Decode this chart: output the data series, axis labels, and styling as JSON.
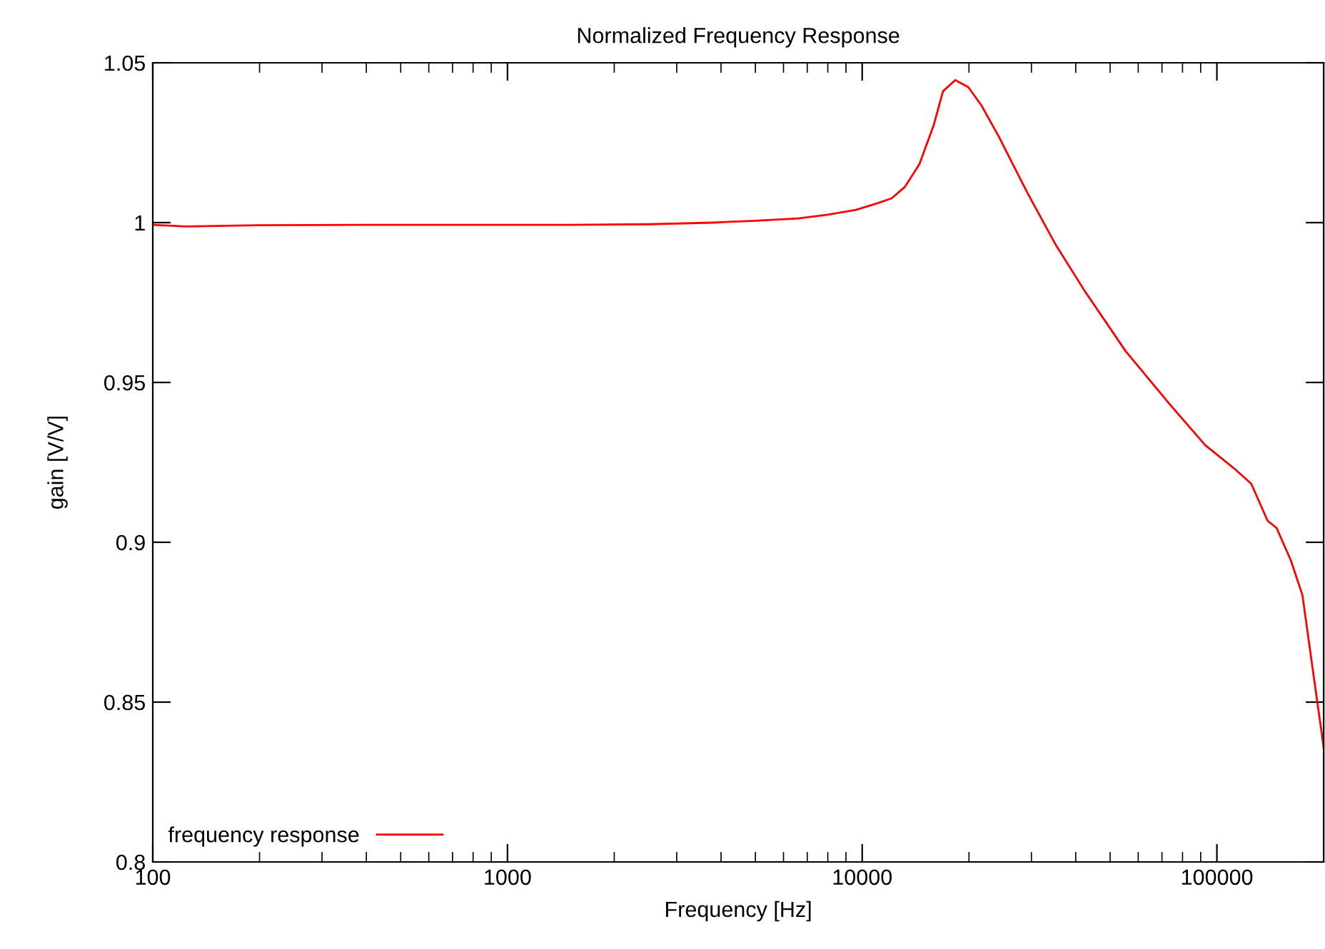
{
  "chart_data": {
    "type": "line",
    "title": "Normalized Frequency Response",
    "xlabel": "Frequency [Hz]",
    "ylabel": "gain [V/V]",
    "log": "x",
    "xlim": [
      100,
      200000
    ],
    "xticks": [
      100,
      1000,
      10000,
      100000
    ],
    "ylim": [
      0.8,
      1.05
    ],
    "yticks": [
      0.8,
      0.85,
      0.9,
      0.95,
      1,
      1.05
    ],
    "legend": "bottom left",
    "grid": false,
    "series": [
      {
        "name": "frequency response",
        "color": "#ff0000",
        "x": [
          100,
          124,
          200,
          400,
          800,
          1500,
          2500,
          3800,
          5000,
          6600,
          8000,
          9600,
          11000,
          12100,
          13200,
          14500,
          15900,
          16900,
          18300,
          19900,
          21700,
          24300,
          29200,
          35200,
          42400,
          55300,
          73500,
          92700,
          111600,
          125000,
          139000,
          147300,
          161800,
          174200,
          185800,
          198300,
          200000
        ],
        "values": [
          0.9993,
          0.9988,
          0.9992,
          0.9993,
          0.9993,
          0.9993,
          0.9995,
          1.0,
          1.0006,
          1.0013,
          1.0025,
          1.004,
          1.006,
          1.0076,
          1.0112,
          1.0183,
          1.0304,
          1.0411,
          1.0446,
          1.0424,
          1.0366,
          1.0268,
          1.0094,
          0.9929,
          0.9786,
          0.9598,
          0.9433,
          0.9304,
          0.9232,
          0.9183,
          0.9067,
          0.9045,
          0.8942,
          0.8835,
          0.8612,
          0.8388,
          0.8355
        ]
      }
    ]
  }
}
